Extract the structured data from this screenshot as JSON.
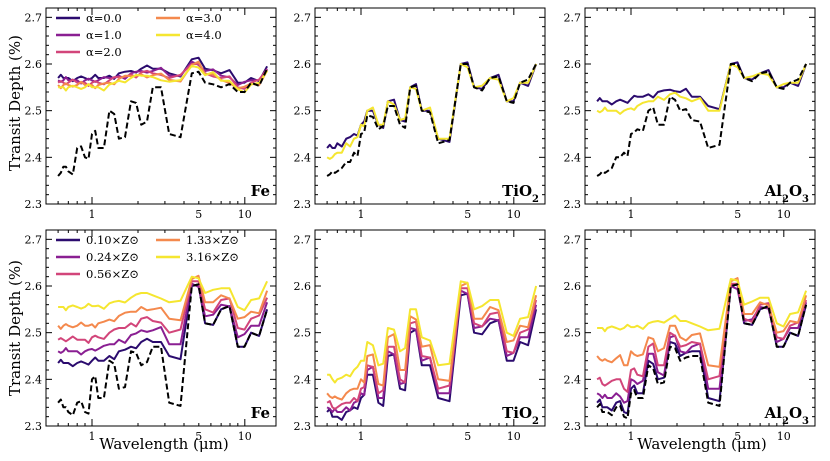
{
  "figure": {
    "ylabel": "Transit Depth (%)",
    "xlabel": "Wavelength (μm)"
  },
  "chart_data": [
    {
      "type": "line",
      "row": 0,
      "col": 0,
      "species": "Fe",
      "xlim": [
        0.5,
        16
      ],
      "ylim": [
        2.3,
        2.72
      ],
      "xscale": "log",
      "xticks": [
        1,
        5,
        10
      ],
      "yticks": [
        2.3,
        2.4,
        2.5,
        2.6,
        2.7
      ],
      "legend": {
        "location": "top-left",
        "columns": 2
      },
      "series": [
        {
          "name": "α=0.0",
          "color": "#2b0b6e",
          "values": [
            2.57,
            2.57,
            2.57,
            2.57,
            2.57,
            2.57,
            2.57,
            2.575,
            2.58,
            2.585,
            2.59,
            2.59,
            2.58,
            2.61,
            2.59,
            2.58,
            2.56,
            2.57,
            2.595
          ]
        },
        {
          "name": "α=1.0",
          "color": "#8a1f92",
          "values": [
            2.565,
            2.565,
            2.565,
            2.565,
            2.565,
            2.565,
            2.565,
            2.57,
            2.575,
            2.58,
            2.585,
            2.585,
            2.575,
            2.605,
            2.585,
            2.575,
            2.555,
            2.565,
            2.59
          ]
        },
        {
          "name": "α=2.0",
          "color": "#d2457a",
          "values": [
            2.56,
            2.56,
            2.56,
            2.56,
            2.56,
            2.56,
            2.56,
            2.565,
            2.572,
            2.578,
            2.582,
            2.58,
            2.57,
            2.6,
            2.58,
            2.57,
            2.55,
            2.56,
            2.588
          ]
        },
        {
          "name": "α=3.0",
          "color": "#f4894d",
          "values": [
            2.555,
            2.555,
            2.555,
            2.555,
            2.555,
            2.555,
            2.555,
            2.56,
            2.568,
            2.574,
            2.578,
            2.576,
            2.566,
            2.598,
            2.578,
            2.566,
            2.548,
            2.558,
            2.586
          ]
        },
        {
          "name": "α=4.0",
          "color": "#f5e630",
          "values": [
            2.55,
            2.55,
            2.55,
            2.55,
            2.55,
            2.55,
            2.55,
            2.556,
            2.564,
            2.57,
            2.575,
            2.572,
            2.562,
            2.596,
            2.576,
            2.564,
            2.546,
            2.556,
            2.585
          ]
        },
        {
          "name": "",
          "color": "#000000",
          "dashed": true,
          "values": [
            2.36,
            2.38,
            2.37,
            2.42,
            2.4,
            2.45,
            2.42,
            2.5,
            2.44,
            2.52,
            2.47,
            2.55,
            2.45,
            2.58,
            2.56,
            2.55,
            2.54,
            2.56,
            2.59
          ]
        }
      ]
    },
    {
      "type": "line",
      "row": 0,
      "col": 1,
      "species": "TiO₂",
      "xlim": [
        0.5,
        16
      ],
      "ylim": [
        2.3,
        2.72
      ],
      "xscale": "log",
      "xticks": [
        1,
        5,
        10
      ],
      "yticks": [
        2.3,
        2.4,
        2.5,
        2.6,
        2.7
      ],
      "series": [
        {
          "name": "",
          "color": "#2b0b6e",
          "values": [
            2.42,
            2.42,
            2.43,
            2.44,
            2.45,
            2.47,
            2.5,
            2.47,
            2.52,
            2.48,
            2.55,
            2.5,
            2.44,
            2.6,
            2.55,
            2.57,
            2.52,
            2.56,
            2.6
          ]
        },
        {
          "name": "",
          "color": "#f5e630",
          "values": [
            2.4,
            2.4,
            2.41,
            2.43,
            2.44,
            2.47,
            2.5,
            2.47,
            2.52,
            2.48,
            2.55,
            2.5,
            2.44,
            2.6,
            2.55,
            2.57,
            2.52,
            2.56,
            2.6
          ]
        },
        {
          "name": "",
          "color": "#000000",
          "dashed": true,
          "values": [
            2.36,
            2.37,
            2.37,
            2.39,
            2.41,
            2.45,
            2.49,
            2.46,
            2.51,
            2.47,
            2.55,
            2.5,
            2.43,
            2.6,
            2.55,
            2.57,
            2.52,
            2.56,
            2.6
          ]
        }
      ]
    },
    {
      "type": "line",
      "row": 0,
      "col": 2,
      "species": "Al₂O₃",
      "xlim": [
        0.5,
        16
      ],
      "ylim": [
        2.3,
        2.72
      ],
      "xscale": "log",
      "xticks": [
        1,
        5,
        10
      ],
      "yticks": [
        2.3,
        2.4,
        2.5,
        2.6,
        2.7
      ],
      "series": [
        {
          "name": "",
          "color": "#2b0b6e",
          "values": [
            2.52,
            2.52,
            2.52,
            2.52,
            2.52,
            2.525,
            2.53,
            2.535,
            2.54,
            2.545,
            2.54,
            2.53,
            2.51,
            2.6,
            2.57,
            2.58,
            2.55,
            2.56,
            2.6
          ]
        },
        {
          "name": "",
          "color": "#f5e630",
          "values": [
            2.5,
            2.5,
            2.5,
            2.5,
            2.5,
            2.505,
            2.51,
            2.52,
            2.53,
            2.535,
            2.53,
            2.52,
            2.5,
            2.6,
            2.57,
            2.58,
            2.55,
            2.56,
            2.6
          ]
        },
        {
          "name": "",
          "color": "#000000",
          "dashed": true,
          "values": [
            2.36,
            2.37,
            2.37,
            2.4,
            2.41,
            2.45,
            2.46,
            2.5,
            2.47,
            2.53,
            2.5,
            2.48,
            2.42,
            2.6,
            2.57,
            2.58,
            2.55,
            2.56,
            2.6
          ]
        }
      ]
    },
    {
      "type": "line",
      "row": 1,
      "col": 0,
      "species": "Fe",
      "xlim": [
        0.5,
        16
      ],
      "ylim": [
        2.3,
        2.72
      ],
      "xscale": "log",
      "xticks": [
        1,
        5,
        10
      ],
      "yticks": [
        2.3,
        2.4,
        2.5,
        2.6,
        2.7
      ],
      "legend": {
        "location": "top-left",
        "columns": 2
      },
      "series": [
        {
          "name": "0.10×Z⊙",
          "color": "#2b0b6e",
          "values": [
            2.435,
            2.435,
            2.435,
            2.435,
            2.435,
            2.44,
            2.44,
            2.45,
            2.46,
            2.47,
            2.48,
            2.48,
            2.45,
            2.6,
            2.52,
            2.55,
            2.47,
            2.5,
            2.55
          ]
        },
        {
          "name": "0.24×Z⊙",
          "color": "#8a1f92",
          "values": [
            2.46,
            2.46,
            2.46,
            2.46,
            2.46,
            2.465,
            2.465,
            2.475,
            2.485,
            2.495,
            2.505,
            2.505,
            2.475,
            2.605,
            2.535,
            2.56,
            2.49,
            2.515,
            2.565
          ]
        },
        {
          "name": "0.56×Z⊙",
          "color": "#d2457a",
          "values": [
            2.485,
            2.485,
            2.485,
            2.485,
            2.485,
            2.49,
            2.49,
            2.5,
            2.51,
            2.52,
            2.53,
            2.525,
            2.5,
            2.61,
            2.55,
            2.57,
            2.51,
            2.53,
            2.575
          ]
        },
        {
          "name": "1.33×Z⊙",
          "color": "#f4894d",
          "values": [
            2.515,
            2.515,
            2.515,
            2.515,
            2.515,
            2.518,
            2.52,
            2.528,
            2.536,
            2.545,
            2.555,
            2.55,
            2.53,
            2.615,
            2.565,
            2.58,
            2.53,
            2.545,
            2.59
          ]
        },
        {
          "name": "3.16×Z⊙",
          "color": "#f5e630",
          "values": [
            2.555,
            2.555,
            2.555,
            2.555,
            2.555,
            2.557,
            2.558,
            2.563,
            2.568,
            2.575,
            2.585,
            2.58,
            2.565,
            2.62,
            2.585,
            2.595,
            2.555,
            2.57,
            2.61
          ]
        },
        {
          "name": "",
          "color": "#000000",
          "dashed": true,
          "values": [
            2.35,
            2.34,
            2.33,
            2.35,
            2.33,
            2.4,
            2.36,
            2.44,
            2.38,
            2.46,
            2.43,
            2.47,
            2.35,
            2.6,
            2.52,
            2.55,
            2.47,
            2.5,
            2.55
          ]
        }
      ]
    },
    {
      "type": "line",
      "row": 1,
      "col": 1,
      "species": "TiO₂",
      "xlim": [
        0.5,
        16
      ],
      "ylim": [
        2.3,
        2.72
      ],
      "xscale": "log",
      "xticks": [
        1,
        5,
        10
      ],
      "yticks": [
        2.3,
        2.4,
        2.5,
        2.6,
        2.7
      ],
      "series": [
        {
          "name": "",
          "color": "#2b0b6e",
          "values": [
            2.33,
            2.32,
            2.32,
            2.33,
            2.34,
            2.36,
            2.41,
            2.35,
            2.45,
            2.38,
            2.5,
            2.43,
            2.36,
            2.58,
            2.5,
            2.52,
            2.44,
            2.48,
            2.55
          ]
        },
        {
          "name": "",
          "color": "#8a1f92",
          "values": [
            2.34,
            2.33,
            2.33,
            2.34,
            2.35,
            2.37,
            2.42,
            2.36,
            2.46,
            2.39,
            2.51,
            2.44,
            2.37,
            2.59,
            2.51,
            2.53,
            2.45,
            2.49,
            2.56
          ]
        },
        {
          "name": "",
          "color": "#d2457a",
          "values": [
            2.35,
            2.34,
            2.34,
            2.35,
            2.36,
            2.38,
            2.43,
            2.37,
            2.47,
            2.4,
            2.52,
            2.45,
            2.38,
            2.595,
            2.52,
            2.54,
            2.46,
            2.5,
            2.57
          ]
        },
        {
          "name": "",
          "color": "#f4894d",
          "values": [
            2.37,
            2.36,
            2.36,
            2.37,
            2.38,
            2.4,
            2.45,
            2.39,
            2.49,
            2.42,
            2.535,
            2.47,
            2.4,
            2.6,
            2.53,
            2.555,
            2.48,
            2.515,
            2.58
          ]
        },
        {
          "name": "",
          "color": "#f5e630",
          "values": [
            2.41,
            2.4,
            2.4,
            2.41,
            2.42,
            2.44,
            2.48,
            2.43,
            2.51,
            2.46,
            2.55,
            2.49,
            2.43,
            2.61,
            2.55,
            2.57,
            2.5,
            2.53,
            2.6
          ]
        }
      ]
    },
    {
      "type": "line",
      "row": 1,
      "col": 2,
      "species": "Al₂O₃",
      "xlim": [
        0.5,
        16
      ],
      "ylim": [
        2.3,
        2.72
      ],
      "xscale": "log",
      "xticks": [
        1,
        5,
        10
      ],
      "yticks": [
        2.3,
        2.4,
        2.5,
        2.6,
        2.7
      ],
      "series": [
        {
          "name": "",
          "color": "#2b0b6e",
          "values": [
            2.35,
            2.34,
            2.34,
            2.35,
            2.33,
            2.38,
            2.37,
            2.44,
            2.4,
            2.48,
            2.45,
            2.46,
            2.36,
            2.6,
            2.52,
            2.55,
            2.47,
            2.5,
            2.56
          ]
        },
        {
          "name": "",
          "color": "#8a1f92",
          "values": [
            2.37,
            2.36,
            2.36,
            2.37,
            2.35,
            2.4,
            2.39,
            2.455,
            2.415,
            2.49,
            2.46,
            2.47,
            2.38,
            2.6,
            2.525,
            2.555,
            2.48,
            2.51,
            2.565
          ]
        },
        {
          "name": "",
          "color": "#d2457a",
          "values": [
            2.4,
            2.39,
            2.39,
            2.4,
            2.38,
            2.42,
            2.41,
            2.47,
            2.43,
            2.5,
            2.47,
            2.48,
            2.4,
            2.605,
            2.53,
            2.56,
            2.49,
            2.515,
            2.57
          ]
        },
        {
          "name": "",
          "color": "#f4894d",
          "values": [
            2.45,
            2.44,
            2.44,
            2.445,
            2.43,
            2.46,
            2.45,
            2.49,
            2.46,
            2.515,
            2.49,
            2.495,
            2.43,
            2.61,
            2.54,
            2.565,
            2.5,
            2.525,
            2.58
          ]
        },
        {
          "name": "",
          "color": "#f5e630",
          "values": [
            2.51,
            2.51,
            2.51,
            2.51,
            2.51,
            2.512,
            2.515,
            2.52,
            2.525,
            2.53,
            2.525,
            2.52,
            2.505,
            2.615,
            2.56,
            2.575,
            2.52,
            2.54,
            2.59
          ]
        },
        {
          "name": "",
          "color": "#000000",
          "dashed": true,
          "values": [
            2.34,
            2.33,
            2.33,
            2.34,
            2.32,
            2.37,
            2.36,
            2.43,
            2.39,
            2.47,
            2.44,
            2.45,
            2.35,
            2.6,
            2.52,
            2.55,
            2.47,
            2.5,
            2.56
          ]
        }
      ]
    }
  ],
  "x_grid_um": [
    0.6,
    0.65,
    0.7,
    0.8,
    0.9,
    1.0,
    1.1,
    1.3,
    1.5,
    1.8,
    2.1,
    2.5,
    3.2,
    4.5,
    5.5,
    7,
    9,
    11,
    14
  ]
}
